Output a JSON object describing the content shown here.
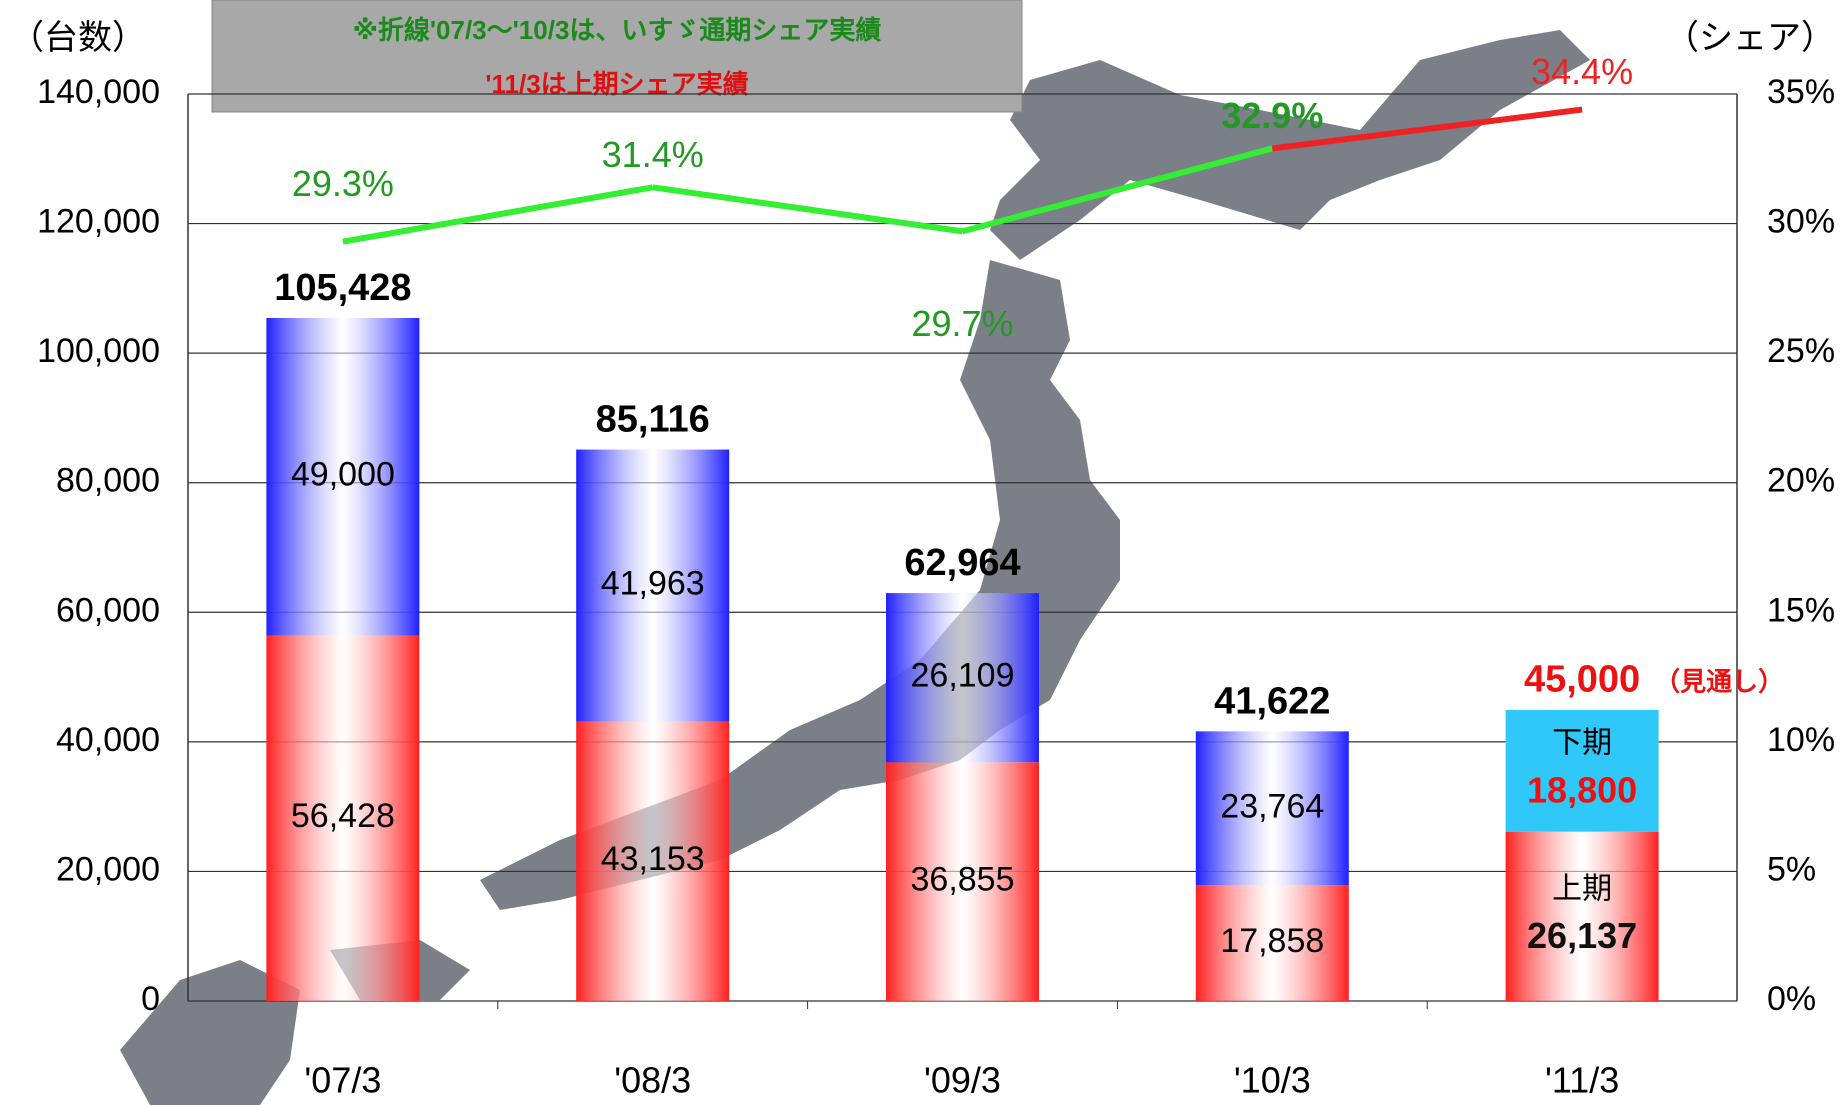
{
  "chart_data": {
    "type": "bar",
    "note": [
      "※折線'07/3～'10/3は、いすゞ通期シェア実績",
      "'11/3は上期シェア実績"
    ],
    "y_label": "（台数）",
    "y2_label": "（シェア）",
    "categories": [
      "'07/3",
      "'08/3",
      "'09/3",
      "'10/3",
      "'11/3"
    ],
    "series": [
      {
        "colors": [
          "#ff2020",
          "#ff2020",
          "#ff2020",
          "#ff2020",
          "#ff2020"
        ],
        "values": [
          56428,
          43153,
          36855,
          17858,
          26137
        ],
        "value_labels": [
          "56,428",
          "43,153",
          "36,855",
          "17,858",
          "26,137"
        ]
      },
      {
        "colors": [
          "#2020ff",
          "#2020ff",
          "#2020ff",
          "#2020ff",
          "#30c8f8"
        ],
        "values": [
          49000,
          41963,
          26109,
          23764,
          18800
        ],
        "value_labels": [
          "49,000",
          "41,963",
          "26,109",
          "23,764",
          "18,800"
        ]
      },
      {
        "type": "line",
        "axis": "y2",
        "segment_colors": [
          "#33ee33",
          "#33ee33",
          "#33ee33",
          "#ee2222"
        ],
        "label_colors": [
          "#229922",
          "#229922",
          "#229922",
          "#229922",
          "#ee2222"
        ],
        "values": [
          29.3,
          31.4,
          29.7,
          32.9,
          34.4
        ],
        "value_labels": [
          "29.3%",
          "31.4%",
          "29.7%",
          "32.9%",
          "34.4%"
        ]
      }
    ],
    "totals": {
      "values": [
        105428,
        85116,
        62964,
        41622,
        45000
      ],
      "value_labels": [
        "105,428",
        "85,116",
        "62,964",
        "41,622",
        "45,000"
      ]
    },
    "period_labels": {
      "lower": "上期",
      "upper": "下期"
    },
    "forecast": "（見通し）",
    "ylim": [
      0,
      140000
    ],
    "yticks": [
      0,
      {
        "value": 20000,
        "label": "20,000"
      },
      {
        "value": 40000,
        "label": "40,000"
      },
      {
        "value": 60000,
        "label": "60,000"
      },
      {
        "value": 80000,
        "label": "80,000"
      },
      {
        "value": 100000,
        "label": "100,000"
      },
      {
        "value": 120000,
        "label": "120,000"
      },
      {
        "value": 140000,
        "label": "140,000"
      }
    ],
    "y2lim": [
      0,
      35
    ],
    "y2ticks": [
      {
        "value": 0,
        "label": "0%"
      },
      {
        "value": 5,
        "label": "5%"
      },
      {
        "value": 10,
        "label": "10%"
      },
      {
        "value": 15,
        "label": "15%"
      },
      {
        "value": 20,
        "label": "20%"
      },
      {
        "value": 25,
        "label": "25%"
      },
      {
        "value": 30,
        "label": "30%"
      },
      {
        "value": 35,
        "label": "35%"
      }
    ],
    "grid": true
  }
}
